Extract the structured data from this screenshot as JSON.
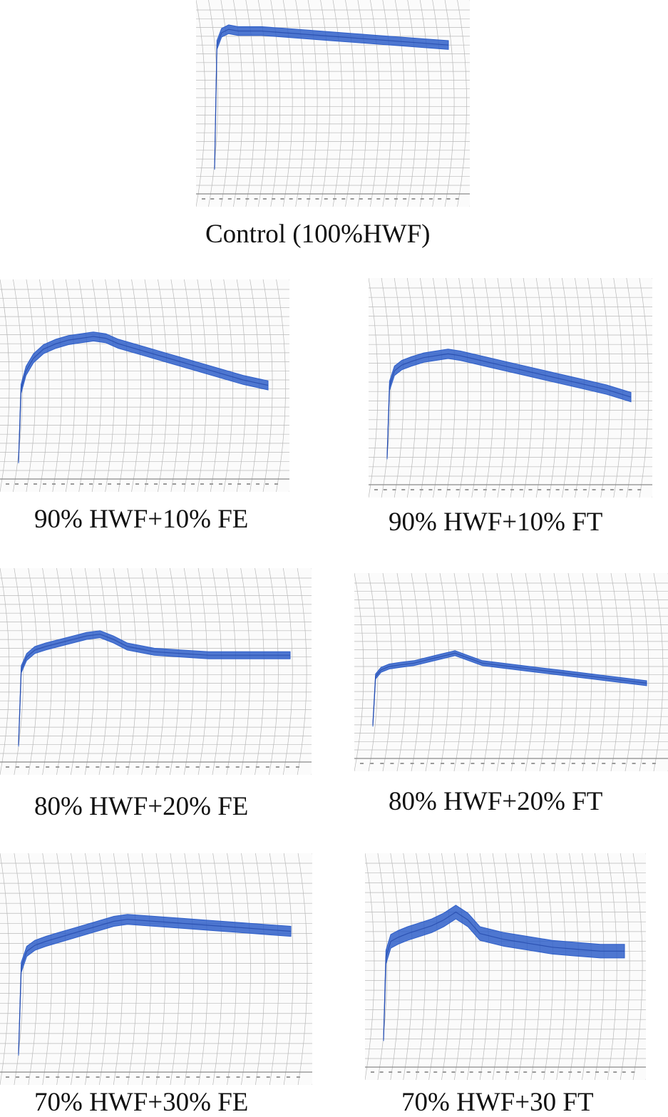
{
  "figure": {
    "trace_color": "#2f5fc9",
    "grid_color": "#b9b9b9",
    "paper_color": "#fbfbfb"
  },
  "panels": [
    {
      "caption": "Control (100%HWF)",
      "chart_data": {
        "type": "line",
        "title": "",
        "xlabel": "",
        "ylabel": "",
        "x": [
          0,
          0.01,
          0.03,
          0.06,
          0.1,
          0.2,
          0.3,
          0.4,
          0.5,
          0.6,
          0.7,
          0.8,
          0.9,
          1.0
        ],
        "y": [
          0.1,
          0.8,
          0.87,
          0.89,
          0.88,
          0.88,
          0.87,
          0.86,
          0.85,
          0.84,
          0.83,
          0.82,
          0.81,
          0.8
        ],
        "band": 0.05
      }
    },
    {
      "caption": "90% HWF+10% FE",
      "chart_data": {
        "type": "line",
        "title": "",
        "xlabel": "",
        "ylabel": "",
        "x": [
          0,
          0.01,
          0.03,
          0.06,
          0.1,
          0.15,
          0.2,
          0.25,
          0.3,
          0.35,
          0.4,
          0.5,
          0.6,
          0.7,
          0.8,
          0.9,
          1.0
        ],
        "y": [
          0.05,
          0.45,
          0.55,
          0.62,
          0.67,
          0.7,
          0.72,
          0.73,
          0.74,
          0.73,
          0.7,
          0.66,
          0.62,
          0.58,
          0.54,
          0.5,
          0.47
        ],
        "band": 0.05
      }
    },
    {
      "caption": "90% HWF+10% FT",
      "chart_data": {
        "type": "line",
        "title": "",
        "xlabel": "",
        "ylabel": "",
        "x": [
          0,
          0.01,
          0.03,
          0.06,
          0.1,
          0.15,
          0.2,
          0.25,
          0.3,
          0.4,
          0.5,
          0.6,
          0.7,
          0.8,
          0.9,
          1.0
        ],
        "y": [
          0.1,
          0.48,
          0.56,
          0.59,
          0.61,
          0.63,
          0.64,
          0.65,
          0.64,
          0.61,
          0.58,
          0.55,
          0.52,
          0.49,
          0.46,
          0.42
        ],
        "band": 0.05
      }
    },
    {
      "caption": "80% HWF+20% FE",
      "chart_data": {
        "type": "line",
        "title": "",
        "xlabel": "",
        "ylabel": "",
        "x": [
          0,
          0.01,
          0.03,
          0.06,
          0.1,
          0.15,
          0.2,
          0.25,
          0.3,
          0.35,
          0.4,
          0.5,
          0.6,
          0.7,
          0.8,
          0.9,
          1.0
        ],
        "y": [
          0.05,
          0.48,
          0.55,
          0.59,
          0.61,
          0.63,
          0.65,
          0.67,
          0.68,
          0.65,
          0.61,
          0.58,
          0.57,
          0.56,
          0.56,
          0.56,
          0.56
        ],
        "band": 0.04
      }
    },
    {
      "caption": "80% HWF+20% FT",
      "chart_data": {
        "type": "line",
        "title": "",
        "xlabel": "",
        "ylabel": "",
        "x": [
          0,
          0.01,
          0.03,
          0.06,
          0.1,
          0.15,
          0.2,
          0.25,
          0.3,
          0.35,
          0.4,
          0.5,
          0.6,
          0.7,
          0.8,
          0.9,
          1.0
        ],
        "y": [
          0.15,
          0.44,
          0.48,
          0.5,
          0.51,
          0.52,
          0.54,
          0.56,
          0.58,
          0.55,
          0.52,
          0.5,
          0.48,
          0.46,
          0.44,
          0.42,
          0.4
        ],
        "band": 0.03
      }
    },
    {
      "caption": "70% HWF+30% FE",
      "chart_data": {
        "type": "line",
        "title": "",
        "xlabel": "",
        "ylabel": "",
        "x": [
          0,
          0.01,
          0.03,
          0.06,
          0.1,
          0.15,
          0.2,
          0.25,
          0.3,
          0.35,
          0.4,
          0.5,
          0.6,
          0.7,
          0.8,
          0.9,
          1.0
        ],
        "y": [
          0.05,
          0.48,
          0.56,
          0.59,
          0.61,
          0.63,
          0.65,
          0.67,
          0.69,
          0.71,
          0.72,
          0.71,
          0.7,
          0.69,
          0.68,
          0.67,
          0.66
        ],
        "band": 0.05
      }
    },
    {
      "caption": "70% HWF+30 FT",
      "chart_data": {
        "type": "line",
        "title": "",
        "xlabel": "",
        "ylabel": "",
        "x": [
          0,
          0.01,
          0.03,
          0.06,
          0.1,
          0.15,
          0.2,
          0.25,
          0.3,
          0.35,
          0.4,
          0.5,
          0.6,
          0.7,
          0.8,
          0.9,
          1.0
        ],
        "y": [
          0.1,
          0.52,
          0.6,
          0.62,
          0.64,
          0.66,
          0.68,
          0.71,
          0.75,
          0.71,
          0.64,
          0.61,
          0.59,
          0.57,
          0.56,
          0.55,
          0.55
        ],
        "band": 0.07
      }
    }
  ]
}
